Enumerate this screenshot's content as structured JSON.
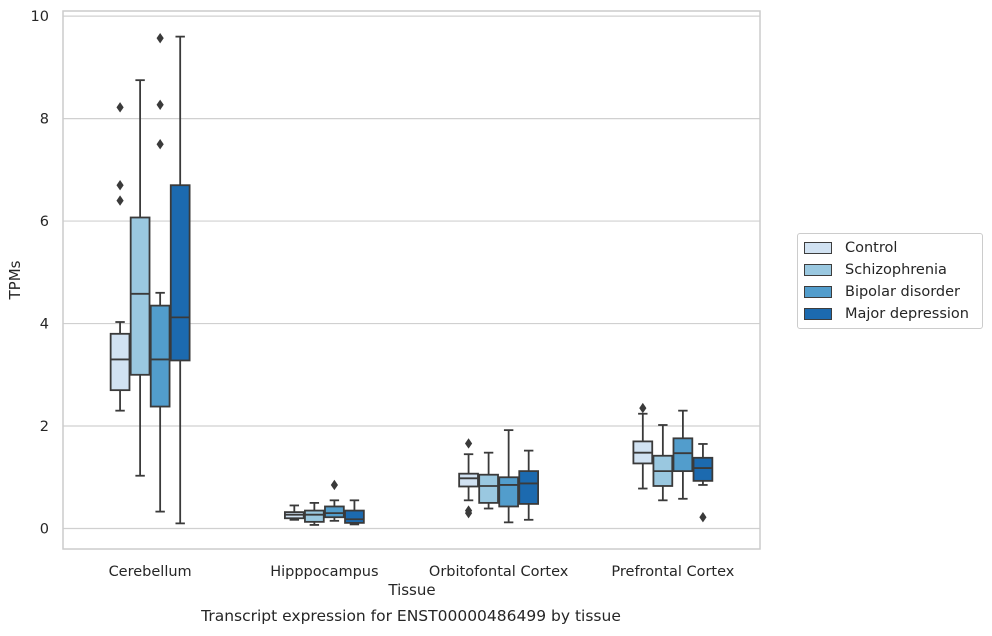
{
  "caption": "Transcript expression for ENST00000486499 by tissue",
  "chart_data": {
    "type": "box",
    "xlabel": "Tissue",
    "ylabel": "TPMs",
    "ylim": [
      -0.4,
      10.1
    ],
    "yticks": [
      "0",
      "2",
      "4",
      "6",
      "8",
      "10"
    ],
    "grid": true,
    "legend_position": "right",
    "categories": [
      "Cerebellum",
      "Hipppocampus",
      "Orbitofontal Cortex",
      "Prefrontal Cortex"
    ],
    "series": [
      {
        "name": "Control",
        "color": "#d1e2f2",
        "boxes": [
          {
            "whislo": 2.3,
            "q1": 2.7,
            "med": 3.3,
            "q3": 3.8,
            "whishi": 4.03,
            "fliers": [
              6.4,
              6.7,
              8.22
            ]
          },
          {
            "whislo": 0.17,
            "q1": 0.2,
            "med": 0.27,
            "q3": 0.32,
            "whishi": 0.45,
            "fliers": []
          },
          {
            "whislo": 0.55,
            "q1": 0.82,
            "med": 0.98,
            "q3": 1.07,
            "whishi": 1.45,
            "fliers": [
              0.3,
              0.35,
              1.66
            ]
          },
          {
            "whislo": 0.78,
            "q1": 1.27,
            "med": 1.48,
            "q3": 1.7,
            "whishi": 2.24,
            "fliers": [
              2.35
            ]
          }
        ]
      },
      {
        "name": "Schizophrenia",
        "color": "#9ac8e0",
        "boxes": [
          {
            "whislo": 1.03,
            "q1": 3.0,
            "med": 4.58,
            "q3": 6.07,
            "whishi": 8.75,
            "fliers": []
          },
          {
            "whislo": 0.07,
            "q1": 0.13,
            "med": 0.27,
            "q3": 0.35,
            "whishi": 0.5,
            "fliers": []
          },
          {
            "whislo": 0.39,
            "q1": 0.5,
            "med": 0.83,
            "q3": 1.05,
            "whishi": 1.48,
            "fliers": []
          },
          {
            "whislo": 0.55,
            "q1": 0.83,
            "med": 1.12,
            "q3": 1.42,
            "whishi": 2.02,
            "fliers": []
          }
        ]
      },
      {
        "name": "Bipolar disorder",
        "color": "#529dcc",
        "boxes": [
          {
            "whislo": 0.33,
            "q1": 2.38,
            "med": 3.3,
            "q3": 4.35,
            "whishi": 4.6,
            "fliers": [
              7.5,
              8.27,
              9.57
            ]
          },
          {
            "whislo": 0.15,
            "q1": 0.22,
            "med": 0.3,
            "q3": 0.43,
            "whishi": 0.55,
            "fliers": [
              0.85
            ]
          },
          {
            "whislo": 0.12,
            "q1": 0.43,
            "med": 0.85,
            "q3": 1.0,
            "whishi": 1.92,
            "fliers": []
          },
          {
            "whislo": 0.58,
            "q1": 1.12,
            "med": 1.47,
            "q3": 1.76,
            "whishi": 2.3,
            "fliers": []
          }
        ]
      },
      {
        "name": "Major depression",
        "color": "#1c6aaf",
        "boxes": [
          {
            "whislo": 0.1,
            "q1": 3.28,
            "med": 4.12,
            "q3": 6.7,
            "whishi": 9.6,
            "fliers": []
          },
          {
            "whislo": 0.08,
            "q1": 0.11,
            "med": 0.18,
            "q3": 0.35,
            "whishi": 0.55,
            "fliers": []
          },
          {
            "whislo": 0.17,
            "q1": 0.48,
            "med": 0.88,
            "q3": 1.12,
            "whishi": 1.52,
            "fliers": []
          },
          {
            "whislo": 0.85,
            "q1": 0.93,
            "med": 1.18,
            "q3": 1.38,
            "whishi": 1.65,
            "fliers": [
              0.22
            ]
          }
        ]
      }
    ]
  }
}
